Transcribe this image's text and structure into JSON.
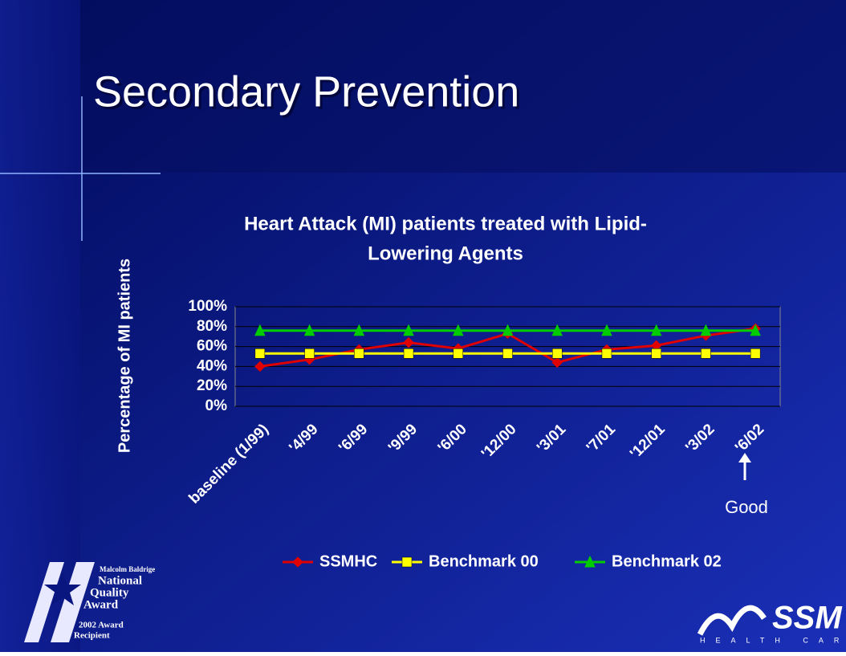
{
  "slide": {
    "title": "Secondary Prevention",
    "annotation": "Good",
    "award_logo": [
      "Malcolm Baldrige",
      "National",
      "Quality",
      "Award",
      "2002 Award",
      "Recipient"
    ],
    "company_logo": {
      "name": "SSM",
      "tagline": "HEALTH CARE"
    }
  },
  "chart_data": {
    "type": "line",
    "title": [
      "Heart Attack (MI) patients treated with Lipid-",
      "Lowering Agents"
    ],
    "y_label": "Percentage of MI patients",
    "categories": [
      "baseline (1/99)",
      "'4/99",
      "'6/99",
      "'9/99",
      "'6/00",
      "'12/00",
      "'3/01",
      "'7/01",
      "'12/01",
      "'3/02",
      "'6/02"
    ],
    "series": [
      {
        "name": "SSMHC",
        "color": "#e00000",
        "marker": "diamond",
        "values": [
          40,
          47,
          57,
          64,
          58,
          73,
          44,
          57,
          61,
          71,
          78
        ]
      },
      {
        "name": "Benchmark 00",
        "color": "#ffff00",
        "marker": "square",
        "values": [
          53,
          53,
          53,
          53,
          53,
          53,
          53,
          53,
          53,
          53,
          53
        ]
      },
      {
        "name": "Benchmark 02",
        "color": "#00cc00",
        "marker": "triangle",
        "values": [
          76,
          76,
          76,
          76,
          76,
          76,
          76,
          76,
          76,
          76,
          76
        ]
      }
    ],
    "ylim": [
      0,
      100
    ],
    "yticks": [
      {
        "value": 0,
        "label": "0%"
      },
      {
        "value": 20,
        "label": "20%"
      },
      {
        "value": 40,
        "label": "40%"
      },
      {
        "value": 60,
        "label": "60%"
      },
      {
        "value": 80,
        "label": "80%"
      },
      {
        "value": 100,
        "label": "100%"
      }
    ],
    "grid": true,
    "legend": "bottom"
  }
}
